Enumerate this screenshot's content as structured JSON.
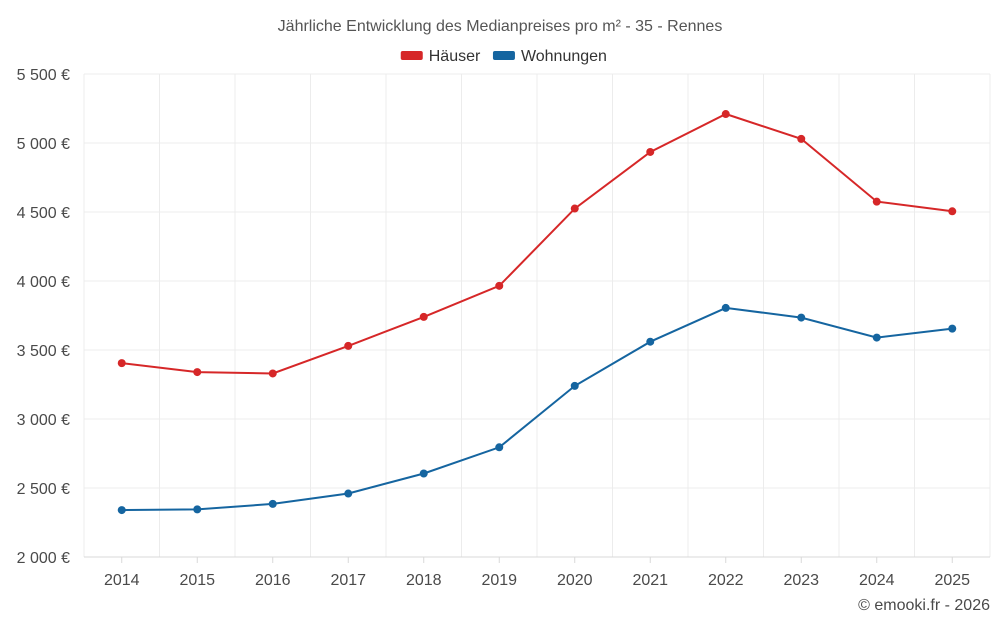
{
  "chart_data": {
    "type": "line",
    "title": "Jährliche Entwicklung des Medianpreises pro m² - 35 - Rennes",
    "categories": [
      "2014",
      "2015",
      "2016",
      "2017",
      "2018",
      "2019",
      "2020",
      "2021",
      "2022",
      "2023",
      "2024",
      "2025"
    ],
    "series": [
      {
        "name": "Häuser",
        "color": "#d62728",
        "values": [
          3405,
          3340,
          3330,
          3530,
          3740,
          3965,
          4525,
          4935,
          5210,
          5030,
          4575,
          4505
        ]
      },
      {
        "name": "Wohnungen",
        "color": "#1565a0",
        "values": [
          2340,
          2345,
          2385,
          2460,
          2605,
          2795,
          3240,
          3560,
          3805,
          3735,
          3590,
          3655
        ]
      }
    ],
    "ylim": [
      2000,
      5500
    ],
    "yticks": [
      2000,
      2500,
      3000,
      3500,
      4000,
      4500,
      5000,
      5500
    ],
    "ytick_labels": [
      "2 000 €",
      "2 500 €",
      "3 000 €",
      "3 500 €",
      "4 000 €",
      "4 500 €",
      "5 000 €",
      "5 500 €"
    ],
    "xlabel": "",
    "ylabel": "",
    "grid": true,
    "legend_position": "top-center"
  },
  "credit": "© emooki.fr - 2026"
}
